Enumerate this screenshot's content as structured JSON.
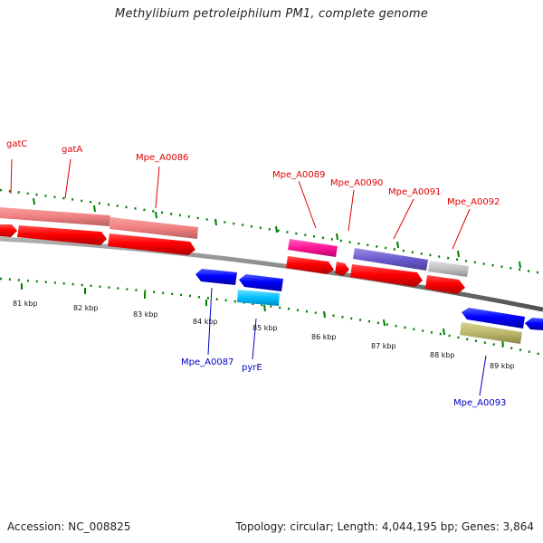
{
  "title": "Methylibium petroleiphilum PM1, complete genome",
  "accession": "Accession: NC_008825",
  "summary": "Topology: circular; Length: 4,044,195 bp; Genes: 3,864",
  "colors": {
    "forward_label": "#e00000",
    "reverse_label": "#0000c0",
    "backbone": "#808080",
    "tick_green": "#008000"
  },
  "scale_labels": [
    "81 kbp",
    "82 kbp",
    "83 kbp",
    "84 kbp",
    "85 kbp",
    "86 kbp",
    "87 kbp",
    "88 kbp",
    "89 kbp"
  ],
  "forward_genes": [
    "gatC",
    "gatA",
    "Mpe_A0086",
    "Mpe_A0089",
    "Mpe_A0090",
    "Mpe_A0091",
    "Mpe_A0092"
  ],
  "reverse_genes": [
    "Mpe_A0087",
    "pyrE",
    "Mpe_A0093"
  ]
}
